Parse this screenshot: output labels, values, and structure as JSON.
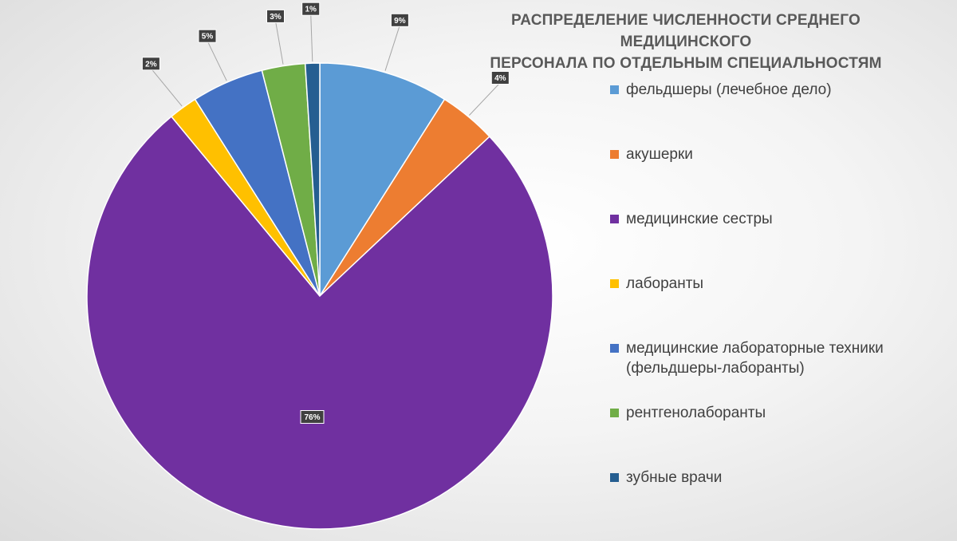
{
  "chart_data": {
    "type": "pie",
    "title_lines": [
      "РАСПРЕДЕЛЕНИЕ ЧИСЛЕННОСТИ СРЕДНЕГО МЕДИЦИНСКОГО",
      "ПЕРСОНАЛА ПО ОТДЕЛЬНЫМ СПЕЦИАЛЬНОСТЯМ"
    ],
    "legend_position": "right",
    "slices": [
      {
        "label": "фельдшеры (лечебное дело)",
        "value": 9,
        "data_label": "9%",
        "color": "#5b9bd5"
      },
      {
        "label": "акушерки",
        "value": 4,
        "data_label": "4%",
        "color": "#ed7d31"
      },
      {
        "label": "медицинские сестры",
        "value": 76,
        "data_label": "76%",
        "color": "#7030a0"
      },
      {
        "label": "лаборанты",
        "value": 2,
        "data_label": "2%",
        "color": "#ffc000"
      },
      {
        "label": "медицинские лабораторные техники (фельдшеры-лаборанты)",
        "value": 5,
        "data_label": "5%",
        "color": "#4472c4"
      },
      {
        "label": "рентгенолаборанты",
        "value": 3,
        "data_label": "3%",
        "color": "#70ad47"
      },
      {
        "label": "зубные врачи",
        "value": 1,
        "data_label": "1%",
        "color": "#255e91"
      }
    ]
  }
}
